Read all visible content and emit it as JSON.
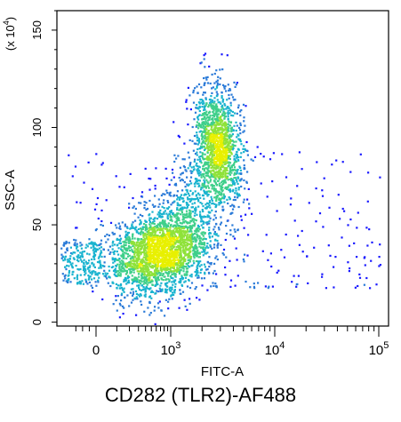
{
  "caption": "CD282 (TLR2)-AF488",
  "chart_data": {
    "type": "scatter",
    "xlabel": "FITC-A",
    "ylabel": "SSC-A",
    "y_multiplier": "(x 10",
    "y_multiplier_exp": "4",
    "y_multiplier_close": ")",
    "x_scale": "biexponential",
    "y_scale": "linear",
    "xlim": [
      -400,
      100000
    ],
    "ylim": [
      -2,
      160
    ],
    "x_ticks": [
      {
        "base": "0",
        "exp": "",
        "value": 0
      },
      {
        "base": "10",
        "exp": "3",
        "value": 1000
      },
      {
        "base": "10",
        "exp": "4",
        "value": 10000
      },
      {
        "base": "10",
        "exp": "5",
        "value": 100000
      }
    ],
    "y_ticks": [
      "0",
      "50",
      "100",
      "150"
    ],
    "y_tick_values": [
      0,
      50,
      100,
      150
    ],
    "grid": false,
    "legend": "none",
    "colormap": [
      "#1a1aff",
      "#2b7bd8",
      "#19b3cf",
      "#3fcf8a",
      "#8fe23a",
      "#e8f000"
    ],
    "populations": [
      {
        "label": "",
        "x_center": 700,
        "y_center": 36,
        "x_spread_decades": 0.55,
        "y_spread": 9,
        "density": "high"
      },
      {
        "label": "",
        "x_center": 2800,
        "y_center": 92,
        "x_spread_decades": 0.3,
        "y_spread": 16,
        "density": "medium"
      }
    ]
  }
}
